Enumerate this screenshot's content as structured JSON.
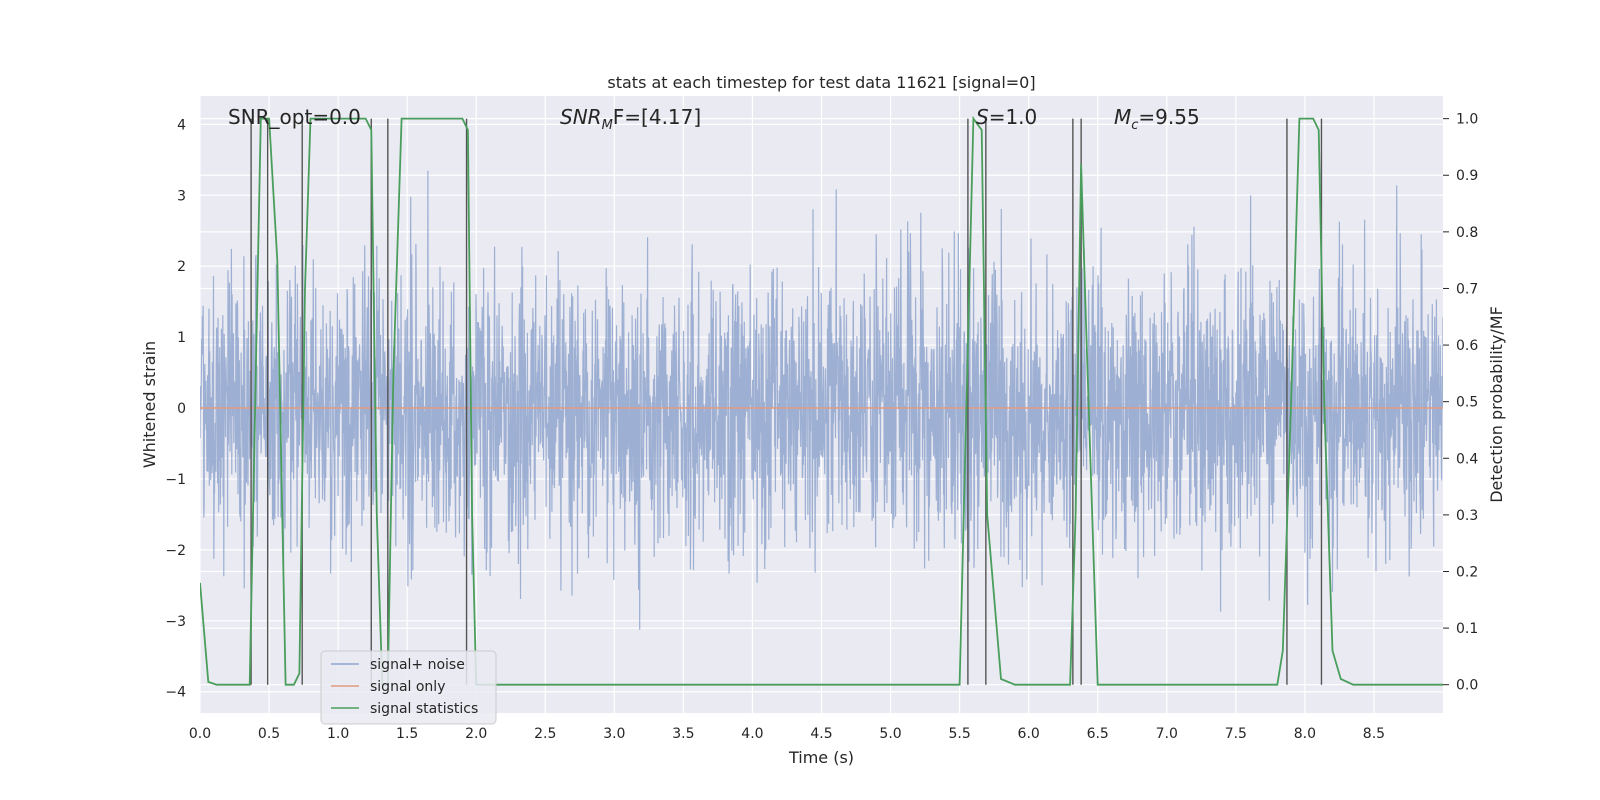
{
  "chart_data": {
    "type": "line",
    "title": "stats at each timestep for test data 11621 [signal=0]",
    "xlabel": "Time (s)",
    "ylabel": "Whitened strain",
    "y2label": "Detection probability/MF",
    "xlim": [
      0,
      9.0
    ],
    "ylim": [
      -4.3,
      4.4
    ],
    "y2lim": [
      -0.05,
      1.04
    ],
    "x_ticks": [
      "0.0",
      "0.5",
      "1.0",
      "1.5",
      "2.0",
      "2.5",
      "3.0",
      "3.5",
      "4.0",
      "4.5",
      "5.0",
      "5.5",
      "6.0",
      "6.5",
      "7.0",
      "7.5",
      "8.0",
      "8.5"
    ],
    "y_ticks": [
      "4",
      "3",
      "2",
      "1",
      "0",
      "−1",
      "−2",
      "−3",
      "−4"
    ],
    "y2_ticks": [
      "1.0",
      "0.9",
      "0.8",
      "0.7",
      "0.6",
      "0.5",
      "0.4",
      "0.3",
      "0.2",
      "0.1",
      "0.0"
    ],
    "grid": true,
    "legend_position": "lower-left",
    "annotations": [
      {
        "id": "snr-opt",
        "text": "SNR_opt=0.0"
      },
      {
        "id": "snr-mf",
        "main": "SNR",
        "sub": "M",
        "rest": "F=[4.17]"
      },
      {
        "id": "s-val",
        "main": "S",
        "rest": "=1.0"
      },
      {
        "id": "mc-val",
        "main": "M",
        "sub": "c",
        "rest": "=9.55"
      }
    ],
    "series": [
      {
        "name": "signal+ noise",
        "color": "#8fa4cc",
        "noise_std": 0.95,
        "noise_seed": 11621,
        "noise_samples": 3600
      },
      {
        "name": "signal only",
        "color": "#e39a7f",
        "x": [
          0,
          9.0
        ],
        "y": [
          0,
          0
        ]
      },
      {
        "name": "signal statistics",
        "color": "#4a9e5c",
        "axis": "right",
        "x": [
          0.0,
          0.06,
          0.12,
          0.2,
          0.3,
          0.36,
          0.4,
          0.44,
          0.5,
          0.56,
          0.62,
          0.68,
          0.72,
          0.76,
          0.8,
          0.86,
          1.0,
          1.1,
          1.2,
          1.24,
          1.28,
          1.32,
          1.36,
          1.4,
          1.46,
          1.52,
          1.6,
          1.7,
          1.8,
          1.9,
          1.94,
          1.97,
          2.0,
          2.1,
          2.5,
          3.0,
          3.5,
          4.0,
          4.5,
          5.0,
          5.5,
          5.56,
          5.6,
          5.66,
          5.7,
          5.8,
          5.9,
          6.0,
          6.1,
          6.2,
          6.3,
          6.34,
          6.38,
          6.42,
          6.46,
          6.5,
          6.54,
          6.6,
          7.0,
          7.5,
          7.8,
          7.84,
          7.9,
          7.96,
          8.0,
          8.06,
          8.1,
          8.14,
          8.2,
          8.26,
          8.35,
          8.5,
          9.0
        ],
        "y": [
          0.18,
          0.005,
          0.0,
          0.0,
          0.0,
          0.0,
          0.5,
          1.0,
          1.0,
          0.75,
          0.0,
          0.0,
          0.02,
          0.7,
          1.0,
          1.0,
          1.0,
          1.0,
          1.0,
          0.98,
          0.3,
          0.0,
          0.0,
          0.55,
          1.0,
          1.0,
          1.0,
          1.0,
          1.0,
          1.0,
          0.98,
          0.3,
          0.0,
          0.0,
          0.0,
          0.0,
          0.0,
          0.0,
          0.0,
          0.0,
          0.0,
          0.6,
          1.0,
          0.98,
          0.3,
          0.01,
          0.0,
          0.0,
          0.0,
          0.0,
          0.0,
          0.3,
          0.92,
          0.6,
          0.3,
          0.0,
          0.0,
          0.0,
          0.0,
          0.0,
          0.0,
          0.06,
          0.5,
          1.0,
          1.0,
          1.0,
          0.98,
          0.5,
          0.06,
          0.01,
          0.0,
          0.0,
          0.0
        ]
      }
    ],
    "vertical_lines": [
      0.37,
      0.49,
      0.74,
      1.24,
      1.36,
      1.93,
      5.56,
      5.69,
      6.32,
      6.38,
      7.87,
      8.12
    ]
  }
}
